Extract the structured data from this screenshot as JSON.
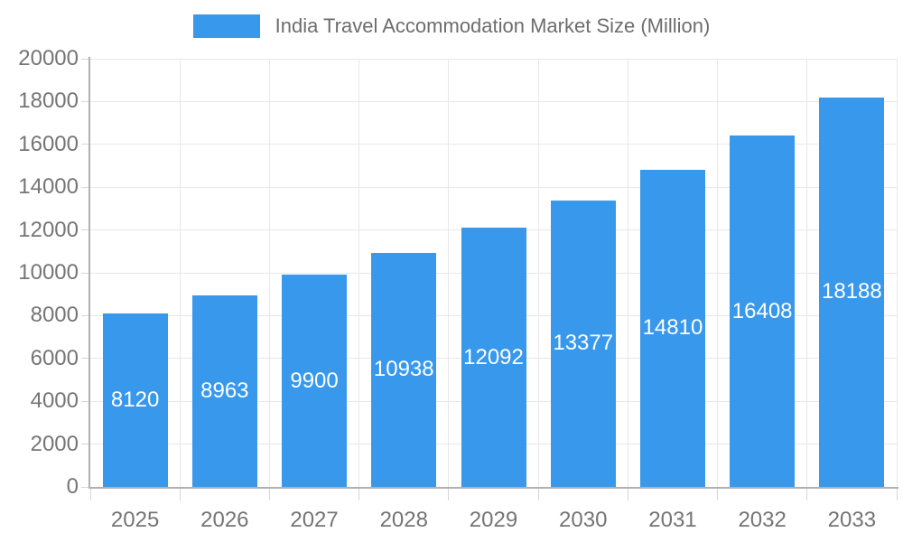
{
  "chart_data": {
    "type": "bar",
    "title": "India Travel Accommodation Market Size (Million)",
    "categories": [
      "2025",
      "2026",
      "2027",
      "2028",
      "2029",
      "2030",
      "2031",
      "2032",
      "2033"
    ],
    "values": [
      8120,
      8963,
      9900,
      10938,
      12092,
      13377,
      14810,
      16408,
      18188
    ],
    "series": [
      {
        "name": "India Travel Accommodation Market Size (Million)",
        "values": [
          8120,
          8963,
          9900,
          10938,
          12092,
          13377,
          14810,
          16408,
          18188
        ]
      }
    ],
    "xlabel": "",
    "ylabel": "",
    "ylim": [
      0,
      20000
    ],
    "ytick_step": 2000,
    "ytick_labels": [
      "0",
      "2000",
      "4000",
      "6000",
      "8000",
      "10000",
      "12000",
      "14000",
      "16000",
      "18000",
      "20000"
    ],
    "grid": true,
    "legend_position": "top",
    "value_labels": "inside-center",
    "colors": {
      "bar": "#3898ec",
      "value_label": "#ffffff",
      "title_text": "#6d6d6d",
      "axis_label": "#757575",
      "grid_line": "#e8e8e8",
      "axis_line": "#b1b1b1",
      "tick_line": "#d6d6d6",
      "background": "#ffffff"
    }
  }
}
